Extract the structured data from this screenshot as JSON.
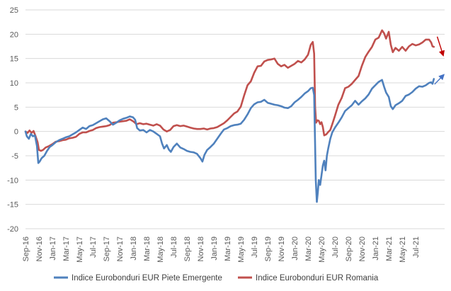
{
  "chart_data": {
    "type": "line",
    "title": "",
    "xlabel": "",
    "ylabel": "",
    "ylim": [
      -20,
      25
    ],
    "yticks": [
      25,
      20,
      15,
      10,
      5,
      0,
      -5,
      -10,
      -15,
      -20
    ],
    "grid": "horizontal",
    "legend_position": "bottom",
    "x_tick_labels": [
      "Sep-16",
      "Nov-16",
      "Jan-17",
      "Mar-17",
      "May-17",
      "Jul-17",
      "Sep-17",
      "Nov-17",
      "Jan-18",
      "Mar-18",
      "May-18",
      "Jul-18",
      "Sep-18",
      "Nov-18",
      "Jan-19",
      "Mar-19",
      "May-19",
      "Jul-19",
      "Sep-19",
      "Nov-19",
      "Jan-20",
      "Mar-20",
      "May-20",
      "Jul-20",
      "Sep-20",
      "Nov-20",
      "Jan-21",
      "Mar-21",
      "May-21",
      "Jul-21"
    ],
    "x_months": [
      0,
      2,
      4,
      6,
      8,
      10,
      12,
      14,
      16,
      18,
      20,
      22,
      24,
      26,
      28,
      30,
      32,
      34,
      36,
      38,
      40,
      42,
      44,
      46,
      48,
      50,
      52,
      54,
      56,
      58
    ],
    "x_range_months": [
      0,
      62.3
    ],
    "series": [
      {
        "name": "Indice Eurobonduri EUR Piete Emergente",
        "color": "#4F81BD",
        "points": [
          [
            0,
            0
          ],
          [
            0.2,
            -1
          ],
          [
            0.5,
            -1.5
          ],
          [
            0.8,
            -0.5
          ],
          [
            1.1,
            -1
          ],
          [
            1.4,
            -0.8
          ],
          [
            1.7,
            -3
          ],
          [
            1.9,
            -6.5
          ],
          [
            2.1,
            -6.2
          ],
          [
            2.4,
            -5.5
          ],
          [
            2.8,
            -5
          ],
          [
            3.2,
            -4
          ],
          [
            3.6,
            -3.2
          ],
          [
            4,
            -2.8
          ],
          [
            4.5,
            -2.2
          ],
          [
            5,
            -1.8
          ],
          [
            5.5,
            -1.5
          ],
          [
            6,
            -1.2
          ],
          [
            6.5,
            -1
          ],
          [
            7,
            -0.6
          ],
          [
            7.5,
            -0.2
          ],
          [
            8,
            0.3
          ],
          [
            8.5,
            0.8
          ],
          [
            9,
            0.5
          ],
          [
            9.5,
            1.1
          ],
          [
            10,
            1.3
          ],
          [
            10.5,
            1.7
          ],
          [
            11,
            2.1
          ],
          [
            11.5,
            2.5
          ],
          [
            12,
            2.7
          ],
          [
            12.5,
            2.1
          ],
          [
            13,
            1.4
          ],
          [
            13.5,
            1.8
          ],
          [
            14,
            2.3
          ],
          [
            14.5,
            2.6
          ],
          [
            15,
            2.8
          ],
          [
            15.5,
            3.1
          ],
          [
            16,
            2.9
          ],
          [
            16.3,
            2.4
          ],
          [
            16.6,
            0.7
          ],
          [
            17,
            0.2
          ],
          [
            17.5,
            0.3
          ],
          [
            18,
            -0.2
          ],
          [
            18.5,
            0.3
          ],
          [
            19,
            0
          ],
          [
            19.5,
            -0.5
          ],
          [
            20,
            -1
          ],
          [
            20.3,
            -2.5
          ],
          [
            20.6,
            -3.5
          ],
          [
            21,
            -2.8
          ],
          [
            21.3,
            -3.7
          ],
          [
            21.6,
            -4.2
          ],
          [
            22,
            -3.2
          ],
          [
            22.5,
            -2.5
          ],
          [
            23,
            -3.3
          ],
          [
            23.5,
            -3.6
          ],
          [
            24,
            -4
          ],
          [
            24.5,
            -4.2
          ],
          [
            25,
            -4.3
          ],
          [
            25.5,
            -4.6
          ],
          [
            26,
            -5.5
          ],
          [
            26.3,
            -6.2
          ],
          [
            26.6,
            -4.8
          ],
          [
            27,
            -3.8
          ],
          [
            27.5,
            -3.2
          ],
          [
            28,
            -2.5
          ],
          [
            28.5,
            -1.5
          ],
          [
            29,
            -0.5
          ],
          [
            29.5,
            0.4
          ],
          [
            30,
            0.7
          ],
          [
            30.5,
            1.1
          ],
          [
            31,
            1.3
          ],
          [
            31.5,
            1.4
          ],
          [
            32,
            1.6
          ],
          [
            32.5,
            2.4
          ],
          [
            33,
            3.5
          ],
          [
            33.5,
            4.8
          ],
          [
            34,
            5.6
          ],
          [
            34.5,
            6
          ],
          [
            35,
            6.1
          ],
          [
            35.5,
            6.5
          ],
          [
            36,
            5.9
          ],
          [
            36.5,
            5.7
          ],
          [
            37,
            5.5
          ],
          [
            37.5,
            5.4
          ],
          [
            38,
            5.2
          ],
          [
            38.5,
            4.9
          ],
          [
            39,
            4.8
          ],
          [
            39.5,
            5.2
          ],
          [
            40,
            6
          ],
          [
            40.5,
            6.5
          ],
          [
            41,
            7.1
          ],
          [
            41.5,
            7.8
          ],
          [
            42,
            8.3
          ],
          [
            42.4,
            8.9
          ],
          [
            42.7,
            9
          ],
          [
            42.9,
            7.5
          ],
          [
            43.05,
            -3
          ],
          [
            43.15,
            -10
          ],
          [
            43.3,
            -14.5
          ],
          [
            43.45,
            -12.5
          ],
          [
            43.6,
            -10
          ],
          [
            43.8,
            -11
          ],
          [
            44,
            -9
          ],
          [
            44.2,
            -7
          ],
          [
            44.4,
            -6
          ],
          [
            44.6,
            -8
          ],
          [
            44.8,
            -5
          ],
          [
            45,
            -3.5
          ],
          [
            45.3,
            -1.5
          ],
          [
            45.6,
            -0.2
          ],
          [
            46,
            0.8
          ],
          [
            46.5,
            1.8
          ],
          [
            47,
            2.9
          ],
          [
            47.5,
            4.2
          ],
          [
            48,
            4.8
          ],
          [
            48.5,
            5.4
          ],
          [
            49,
            6.3
          ],
          [
            49.5,
            5.5
          ],
          [
            50,
            6.2
          ],
          [
            50.5,
            6.8
          ],
          [
            51,
            7.6
          ],
          [
            51.5,
            8.8
          ],
          [
            52,
            9.5
          ],
          [
            52.5,
            10.2
          ],
          [
            53,
            10.6
          ],
          [
            53.3,
            9.2
          ],
          [
            53.6,
            8
          ],
          [
            54,
            7.1
          ],
          [
            54.3,
            5.2
          ],
          [
            54.6,
            4.6
          ],
          [
            55,
            5.4
          ],
          [
            55.5,
            5.8
          ],
          [
            56,
            6.3
          ],
          [
            56.5,
            7.3
          ],
          [
            57,
            7.6
          ],
          [
            57.5,
            8.1
          ],
          [
            58,
            8.8
          ],
          [
            58.5,
            9.3
          ],
          [
            59,
            9.2
          ],
          [
            59.5,
            9.5
          ],
          [
            60,
            10
          ],
          [
            60.3,
            10.1
          ],
          [
            60.5,
            9.8
          ],
          [
            60.7,
            10.8
          ]
        ]
      },
      {
        "name": "Indice Eurobonduri EUR Romania",
        "color": "#C0504D",
        "points": [
          [
            0,
            0
          ],
          [
            0.3,
            -0.3
          ],
          [
            0.6,
            0.2
          ],
          [
            0.9,
            -0.3
          ],
          [
            1.2,
            0.1
          ],
          [
            1.5,
            -1
          ],
          [
            1.8,
            -2.2
          ],
          [
            2,
            -3.8
          ],
          [
            2.3,
            -4
          ],
          [
            2.6,
            -3.8
          ],
          [
            3,
            -3.3
          ],
          [
            3.5,
            -3
          ],
          [
            4,
            -2.6
          ],
          [
            4.5,
            -2.1
          ],
          [
            5,
            -2
          ],
          [
            5.5,
            -1.8
          ],
          [
            6,
            -1.7
          ],
          [
            6.5,
            -1.4
          ],
          [
            7,
            -1.3
          ],
          [
            7.5,
            -1.1
          ],
          [
            8,
            -0.5
          ],
          [
            8.5,
            -0.2
          ],
          [
            9,
            -0.2
          ],
          [
            9.5,
            0.1
          ],
          [
            10,
            0.3
          ],
          [
            10.5,
            0.7
          ],
          [
            11,
            0.9
          ],
          [
            11.5,
            1
          ],
          [
            12,
            1.1
          ],
          [
            12.5,
            1.3
          ],
          [
            13,
            1.8
          ],
          [
            13.5,
            1.9
          ],
          [
            14,
            2
          ],
          [
            14.5,
            2.1
          ],
          [
            15,
            2.2
          ],
          [
            15.5,
            2.5
          ],
          [
            16,
            2.1
          ],
          [
            16.5,
            1.5
          ],
          [
            17,
            1.7
          ],
          [
            17.5,
            1.5
          ],
          [
            18,
            1.6
          ],
          [
            18.5,
            1.4
          ],
          [
            19,
            1.2
          ],
          [
            19.5,
            1.5
          ],
          [
            20,
            1.2
          ],
          [
            20.5,
            0.4
          ],
          [
            21,
            0
          ],
          [
            21.5,
            0.3
          ],
          [
            22,
            1.1
          ],
          [
            22.5,
            1.3
          ],
          [
            23,
            1.1
          ],
          [
            23.5,
            1.2
          ],
          [
            24,
            1
          ],
          [
            24.5,
            0.8
          ],
          [
            25,
            0.6
          ],
          [
            25.5,
            0.5
          ],
          [
            26,
            0.5
          ],
          [
            26.5,
            0.6
          ],
          [
            27,
            0.4
          ],
          [
            27.5,
            0.6
          ],
          [
            28,
            0.7
          ],
          [
            28.5,
            0.9
          ],
          [
            29,
            1.3
          ],
          [
            29.5,
            1.7
          ],
          [
            30,
            2.3
          ],
          [
            30.5,
            3
          ],
          [
            31,
            3.7
          ],
          [
            31.5,
            4.1
          ],
          [
            32,
            5.1
          ],
          [
            32.5,
            7.4
          ],
          [
            33,
            9.5
          ],
          [
            33.5,
            10.3
          ],
          [
            34,
            12.1
          ],
          [
            34.5,
            13.4
          ],
          [
            35,
            13.5
          ],
          [
            35.5,
            14.4
          ],
          [
            36,
            14.7
          ],
          [
            36.5,
            14.8
          ],
          [
            37,
            15
          ],
          [
            37.5,
            13.9
          ],
          [
            38,
            13.4
          ],
          [
            38.5,
            13.7
          ],
          [
            39,
            13.1
          ],
          [
            39.5,
            13.5
          ],
          [
            40,
            13.9
          ],
          [
            40.5,
            14.5
          ],
          [
            41,
            14.2
          ],
          [
            41.5,
            14.8
          ],
          [
            42,
            15.8
          ],
          [
            42.4,
            17.8
          ],
          [
            42.7,
            18.4
          ],
          [
            42.9,
            16
          ],
          [
            43.05,
            5
          ],
          [
            43.2,
            1.8
          ],
          [
            43.4,
            2.3
          ],
          [
            43.6,
            2.2
          ],
          [
            43.8,
            1.5
          ],
          [
            44,
            1.9
          ],
          [
            44.2,
            0.9
          ],
          [
            44.4,
            -0.8
          ],
          [
            44.7,
            -0.6
          ],
          [
            45,
            -0.1
          ],
          [
            45.3,
            0.3
          ],
          [
            45.6,
            1.5
          ],
          [
            46,
            3.2
          ],
          [
            46.5,
            5.5
          ],
          [
            47,
            6.9
          ],
          [
            47.5,
            8.9
          ],
          [
            48,
            9.2
          ],
          [
            48.5,
            9.8
          ],
          [
            49,
            10.6
          ],
          [
            49.5,
            11.4
          ],
          [
            50,
            13.5
          ],
          [
            50.5,
            15.3
          ],
          [
            51,
            16.4
          ],
          [
            51.5,
            17.4
          ],
          [
            52,
            18.9
          ],
          [
            52.5,
            19.3
          ],
          [
            53,
            20.8
          ],
          [
            53.3,
            20.2
          ],
          [
            53.6,
            19.1
          ],
          [
            54,
            20.5
          ],
          [
            54.3,
            17.8
          ],
          [
            54.6,
            16.3
          ],
          [
            55,
            17.2
          ],
          [
            55.5,
            16.6
          ],
          [
            56,
            17.4
          ],
          [
            56.5,
            16.6
          ],
          [
            57,
            17.5
          ],
          [
            57.5,
            18
          ],
          [
            58,
            17.7
          ],
          [
            58.5,
            17.9
          ],
          [
            59,
            18.3
          ],
          [
            59.5,
            18.9
          ],
          [
            60,
            18.9
          ],
          [
            60.3,
            18.3
          ],
          [
            60.5,
            17.5
          ],
          [
            60.7,
            17.4
          ]
        ]
      }
    ],
    "annotations": [
      {
        "name": "red-trend-arrow",
        "color": "#C00000",
        "from": [
          61.2,
          19.5
        ],
        "to": [
          62.1,
          15.6
        ]
      },
      {
        "name": "blue-trend-arrow",
        "color": "#4472C4",
        "from": [
          60.8,
          9.7
        ],
        "to": [
          62.2,
          11.7
        ]
      }
    ]
  }
}
